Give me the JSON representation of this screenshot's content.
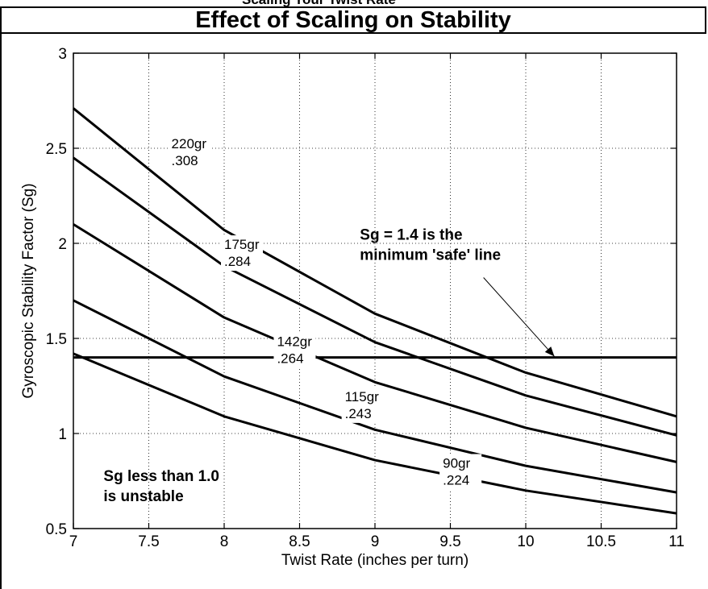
{
  "header": {
    "cut_text": "Scaling Your Twist Rate",
    "title": "Effect of Scaling on Stability"
  },
  "chart_data": {
    "type": "line",
    "title": "Effect of Scaling on Stability",
    "xlabel": "Twist Rate (inches per turn)",
    "ylabel": "Gyroscopic Stability Factor (Sg)",
    "xlim": [
      7,
      11
    ],
    "ylim": [
      0.5,
      3
    ],
    "x_ticks": [
      "7",
      "7.5",
      "8",
      "8.5",
      "9",
      "9.5",
      "10",
      "10.5",
      "11"
    ],
    "y_ticks": [
      "0.5",
      "1",
      "1.5",
      "2",
      "2.5",
      "3"
    ],
    "grid": true,
    "series": [
      {
        "name": "220gr .308",
        "x": [
          7,
          8,
          9,
          10,
          11
        ],
        "y": [
          2.71,
          2.07,
          1.63,
          1.32,
          1.09
        ]
      },
      {
        "name": "175gr .284",
        "x": [
          7,
          8,
          9,
          10,
          11
        ],
        "y": [
          2.45,
          1.88,
          1.48,
          1.2,
          0.99
        ]
      },
      {
        "name": "142gr .264",
        "x": [
          7,
          8,
          9,
          10,
          11
        ],
        "y": [
          2.1,
          1.61,
          1.27,
          1.03,
          0.85
        ]
      },
      {
        "name": "115gr .243",
        "x": [
          7,
          8,
          9,
          10,
          11
        ],
        "y": [
          1.7,
          1.3,
          1.02,
          0.83,
          0.69
        ]
      },
      {
        "name": "90gr .224",
        "x": [
          7,
          8,
          9,
          10,
          11
        ],
        "y": [
          1.42,
          1.09,
          0.86,
          0.7,
          0.58
        ]
      }
    ],
    "reference_line": {
      "y": 1.4
    },
    "series_labels": [
      {
        "series": 0,
        "line1": "220gr",
        "line2": ".308",
        "at": [
          7.65,
          2.5
        ]
      },
      {
        "series": 1,
        "line1": "175gr",
        "line2": ".284",
        "at": [
          8.0,
          1.97
        ]
      },
      {
        "series": 2,
        "line1": "142gr",
        "line2": ".264",
        "at": [
          8.35,
          1.46
        ]
      },
      {
        "series": 3,
        "line1": "115gr",
        "line2": ".243",
        "at": [
          8.8,
          1.17
        ]
      },
      {
        "series": 4,
        "line1": "90gr",
        "line2": ".224",
        "at": [
          9.45,
          0.82
        ]
      }
    ],
    "annotations": [
      {
        "line1": "Sg = 1.4 is the",
        "line2": "minimum 'safe' line",
        "at": [
          8.9,
          2.02
        ]
      },
      {
        "line1": "Sg less than 1.0",
        "line2": "is unstable",
        "at": [
          7.2,
          0.75
        ]
      }
    ]
  }
}
